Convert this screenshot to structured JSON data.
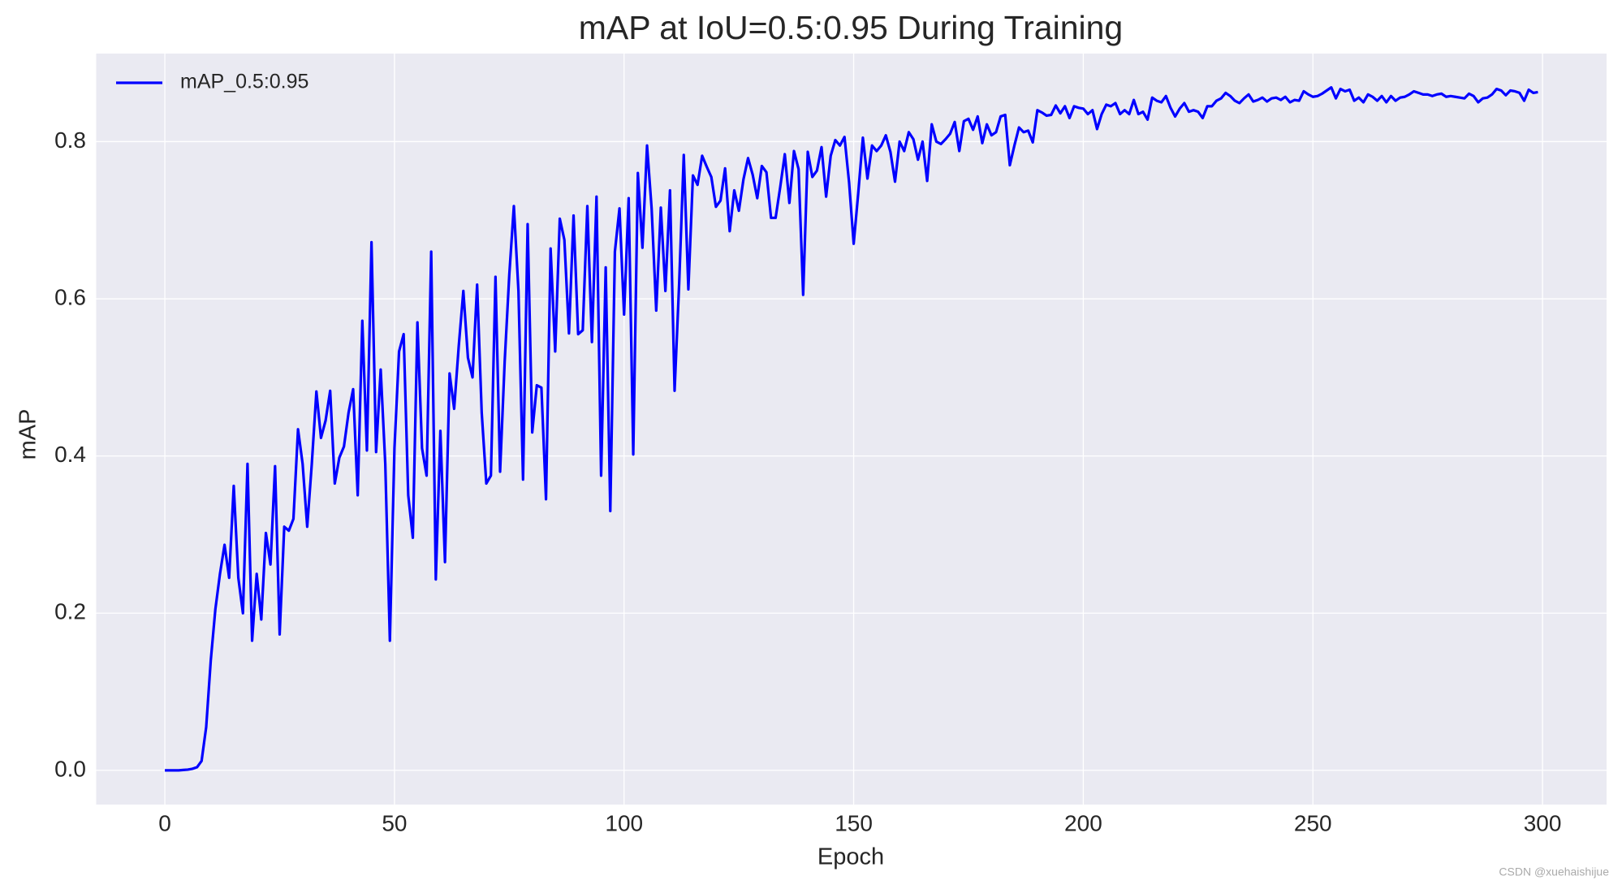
{
  "chart_data": {
    "type": "line",
    "title": "mAP at IoU=0.5:0.95 During Training",
    "x_label": "Epoch",
    "y_label": "mAP",
    "watermark": "CSDN @xuehaishijue",
    "grid": true,
    "legend_position": "upper left",
    "xlim": [
      -14.95,
      313.95
    ],
    "ylim": [
      -0.0435,
      0.912
    ],
    "xticks": [
      0,
      50,
      100,
      150,
      200,
      250,
      300
    ],
    "yticks": [
      {
        "value": 0,
        "label": "0.0"
      },
      0.2,
      0.4,
      0.6,
      0.8
    ],
    "x": [
      0,
      1,
      2,
      3,
      4,
      5,
      6,
      7,
      8,
      9,
      10,
      11,
      12,
      13,
      14,
      15,
      16,
      17,
      18,
      19,
      20,
      21,
      22,
      23,
      24,
      25,
      26,
      27,
      28,
      29,
      30,
      31,
      32,
      33,
      34,
      35,
      36,
      37,
      38,
      39,
      40,
      41,
      42,
      43,
      44,
      45,
      46,
      47,
      48,
      49,
      50,
      51,
      52,
      53,
      54,
      55,
      56,
      57,
      58,
      59,
      60,
      61,
      62,
      63,
      64,
      65,
      66,
      67,
      68,
      69,
      70,
      71,
      72,
      73,
      74,
      75,
      76,
      77,
      78,
      79,
      80,
      81,
      82,
      83,
      84,
      85,
      86,
      87,
      88,
      89,
      90,
      91,
      92,
      93,
      94,
      95,
      96,
      97,
      98,
      99,
      100,
      101,
      102,
      103,
      104,
      105,
      106,
      107,
      108,
      109,
      110,
      111,
      112,
      113,
      114,
      115,
      116,
      117,
      118,
      119,
      120,
      121,
      122,
      123,
      124,
      125,
      126,
      127,
      128,
      129,
      130,
      131,
      132,
      133,
      134,
      135,
      136,
      137,
      138,
      139,
      140,
      141,
      142,
      143,
      144,
      145,
      146,
      147,
      148,
      149,
      150,
      151,
      152,
      153,
      154,
      155,
      156,
      157,
      158,
      159,
      160,
      161,
      162,
      163,
      164,
      165,
      166,
      167,
      168,
      169,
      170,
      171,
      172,
      173,
      174,
      175,
      176,
      177,
      178,
      179,
      180,
      181,
      182,
      183,
      184,
      185,
      186,
      187,
      188,
      189,
      190,
      191,
      192,
      193,
      194,
      195,
      196,
      197,
      198,
      199,
      200,
      201,
      202,
      203,
      204,
      205,
      206,
      207,
      208,
      209,
      210,
      211,
      212,
      213,
      214,
      215,
      216,
      217,
      218,
      219,
      220,
      221,
      222,
      223,
      224,
      225,
      226,
      227,
      228,
      229,
      230,
      231,
      232,
      233,
      234,
      235,
      236,
      237,
      238,
      239,
      240,
      241,
      242,
      243,
      244,
      245,
      246,
      247,
      248,
      249,
      250,
      251,
      252,
      253,
      254,
      255,
      256,
      257,
      258,
      259,
      260,
      261,
      262,
      263,
      264,
      265,
      266,
      267,
      268,
      269,
      270,
      271,
      272,
      273,
      274,
      275,
      276,
      277,
      278,
      279,
      280,
      281,
      282,
      283,
      284,
      285,
      286,
      287,
      288,
      289,
      290,
      291,
      292,
      293,
      294,
      295,
      296,
      297,
      298,
      299
    ],
    "series": [
      {
        "name": "mAP_0.5:0.95",
        "color": "#0000ff",
        "values": [
          0.0,
          0.0,
          0.0,
          0.0,
          0.0005,
          0.001,
          0.002,
          0.004,
          0.012,
          0.055,
          0.14,
          0.205,
          0.25,
          0.287,
          0.245,
          0.362,
          0.245,
          0.2,
          0.39,
          0.165,
          0.25,
          0.192,
          0.302,
          0.262,
          0.387,
          0.173,
          0.31,
          0.305,
          0.32,
          0.434,
          0.39,
          0.31,
          0.39,
          0.482,
          0.423,
          0.445,
          0.483,
          0.365,
          0.398,
          0.412,
          0.455,
          0.485,
          0.35,
          0.572,
          0.407,
          0.672,
          0.405,
          0.51,
          0.39,
          0.165,
          0.41,
          0.533,
          0.555,
          0.35,
          0.296,
          0.57,
          0.41,
          0.375,
          0.66,
          0.243,
          0.432,
          0.265,
          0.505,
          0.46,
          0.54,
          0.61,
          0.525,
          0.5,
          0.618,
          0.455,
          0.365,
          0.375,
          0.628,
          0.38,
          0.52,
          0.63,
          0.718,
          0.61,
          0.37,
          0.695,
          0.43,
          0.49,
          0.487,
          0.345,
          0.664,
          0.533,
          0.702,
          0.675,
          0.556,
          0.706,
          0.555,
          0.56,
          0.718,
          0.545,
          0.73,
          0.375,
          0.64,
          0.33,
          0.66,
          0.715,
          0.58,
          0.728,
          0.402,
          0.76,
          0.665,
          0.795,
          0.715,
          0.585,
          0.716,
          0.61,
          0.738,
          0.483,
          0.62,
          0.783,
          0.612,
          0.757,
          0.745,
          0.782,
          0.768,
          0.755,
          0.717,
          0.725,
          0.766,
          0.686,
          0.738,
          0.712,
          0.752,
          0.779,
          0.758,
          0.728,
          0.769,
          0.761,
          0.703,
          0.703,
          0.742,
          0.784,
          0.722,
          0.788,
          0.765,
          0.605,
          0.787,
          0.755,
          0.763,
          0.793,
          0.73,
          0.782,
          0.802,
          0.795,
          0.806,
          0.748,
          0.67,
          0.735,
          0.805,
          0.753,
          0.795,
          0.788,
          0.795,
          0.808,
          0.787,
          0.749,
          0.8,
          0.788,
          0.812,
          0.803,
          0.777,
          0.8,
          0.75,
          0.822,
          0.8,
          0.797,
          0.803,
          0.81,
          0.825,
          0.788,
          0.826,
          0.829,
          0.815,
          0.832,
          0.798,
          0.822,
          0.808,
          0.812,
          0.832,
          0.834,
          0.77,
          0.795,
          0.818,
          0.812,
          0.814,
          0.799,
          0.84,
          0.837,
          0.833,
          0.834,
          0.846,
          0.836,
          0.845,
          0.83,
          0.845,
          0.843,
          0.842,
          0.835,
          0.84,
          0.816,
          0.835,
          0.847,
          0.845,
          0.849,
          0.835,
          0.84,
          0.835,
          0.853,
          0.835,
          0.838,
          0.828,
          0.856,
          0.852,
          0.85,
          0.858,
          0.843,
          0.832,
          0.842,
          0.849,
          0.838,
          0.84,
          0.838,
          0.83,
          0.845,
          0.845,
          0.852,
          0.855,
          0.862,
          0.858,
          0.852,
          0.849,
          0.855,
          0.86,
          0.851,
          0.853,
          0.856,
          0.851,
          0.855,
          0.856,
          0.853,
          0.857,
          0.85,
          0.853,
          0.852,
          0.864,
          0.86,
          0.857,
          0.858,
          0.861,
          0.865,
          0.869,
          0.855,
          0.867,
          0.864,
          0.866,
          0.852,
          0.856,
          0.85,
          0.86,
          0.857,
          0.852,
          0.858,
          0.85,
          0.858,
          0.852,
          0.856,
          0.857,
          0.86,
          0.864,
          0.862,
          0.86,
          0.86,
          0.858,
          0.86,
          0.861,
          0.857,
          0.858,
          0.857,
          0.856,
          0.855,
          0.861,
          0.858,
          0.85,
          0.855,
          0.856,
          0.86,
          0.867,
          0.865,
          0.859,
          0.865,
          0.864,
          0.862,
          0.852,
          0.866,
          0.862,
          0.863
        ]
      }
    ]
  }
}
